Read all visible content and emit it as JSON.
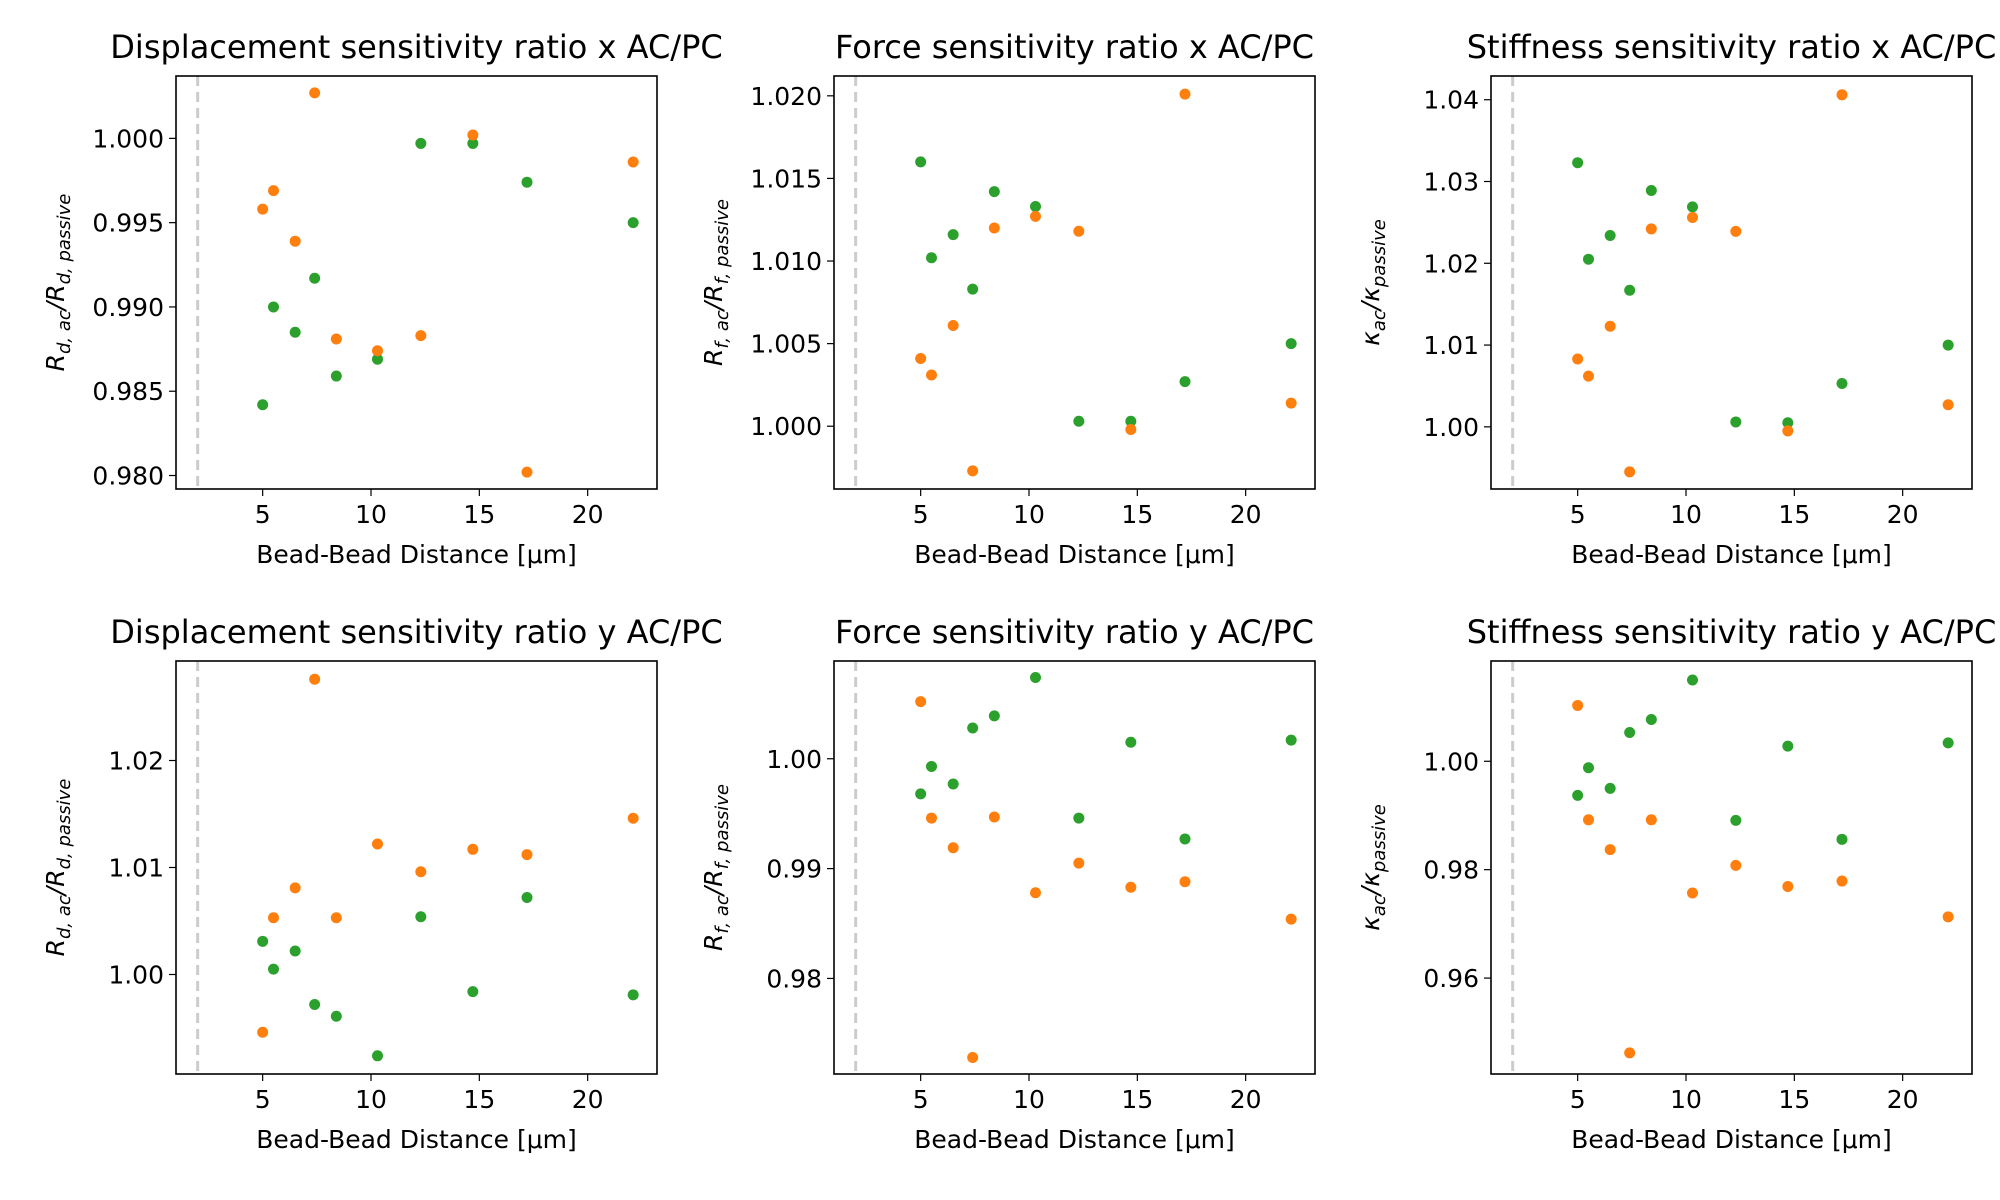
{
  "colors": {
    "series_a": "#2ca02c",
    "series_b": "#ff7f0e",
    "ref_line": "#cccccc"
  },
  "chart_data": [
    {
      "type": "scatter",
      "title": "Displacement sensitivity ratio x AC/PC",
      "xlabel": "Bead-Bead Distance [μm]",
      "ylabel": {
        "main": "R",
        "sub1": "d, ac",
        "mid": "/R",
        "sub2": "d, passive"
      },
      "xlim": [
        1,
        23.2
      ],
      "ylim": [
        0.9792,
        1.0037
      ],
      "xticks": [
        5,
        10,
        15,
        20
      ],
      "xtick_labels": [
        "5",
        "10",
        "15",
        "20"
      ],
      "yticks": [
        0.98,
        0.985,
        0.99,
        0.995,
        1.0
      ],
      "ytick_labels": [
        "0.980",
        "0.985",
        "0.990",
        "0.995",
        "1.000"
      ],
      "ref_x": 2,
      "series": [
        {
          "color": "#2ca02c",
          "x": [
            5.0,
            5.5,
            6.5,
            7.4,
            8.4,
            10.3,
            12.3,
            14.7,
            17.2,
            22.1
          ],
          "y": [
            0.9842,
            0.99,
            0.9885,
            0.9917,
            0.9859,
            0.9869,
            0.9997,
            0.9997,
            0.9974,
            0.995
          ]
        },
        {
          "color": "#ff7f0e",
          "x": [
            5.0,
            5.5,
            6.5,
            7.4,
            8.4,
            10.3,
            12.3,
            14.7,
            17.2,
            22.1
          ],
          "y": [
            0.9958,
            0.9969,
            0.9939,
            1.0027,
            0.9881,
            0.9874,
            0.9883,
            1.0002,
            0.9802,
            0.9986
          ]
        }
      ]
    },
    {
      "type": "scatter",
      "title": "Force sensitivity ratio x AC/PC",
      "xlabel": "Bead-Bead Distance [μm]",
      "ylabel": {
        "main": "R",
        "sub1": "f, ac",
        "mid": "/R",
        "sub2": "f, passive"
      },
      "xlim": [
        1,
        23.2
      ],
      "ylim": [
        0.9962,
        1.0212
      ],
      "xticks": [
        5,
        10,
        15,
        20
      ],
      "xtick_labels": [
        "5",
        "10",
        "15",
        "20"
      ],
      "yticks": [
        1.0,
        1.005,
        1.01,
        1.015,
        1.02
      ],
      "ytick_labels": [
        "1.000",
        "1.005",
        "1.010",
        "1.015",
        "1.020"
      ],
      "ref_x": 2,
      "series": [
        {
          "color": "#2ca02c",
          "x": [
            5.0,
            5.5,
            6.5,
            7.4,
            8.4,
            10.3,
            12.3,
            14.7,
            17.2,
            22.1
          ],
          "y": [
            1.016,
            1.0102,
            1.0116,
            1.0083,
            1.0142,
            1.0133,
            1.0003,
            1.0003,
            1.0027,
            1.005
          ]
        },
        {
          "color": "#ff7f0e",
          "x": [
            5.0,
            5.5,
            6.5,
            7.4,
            8.4,
            10.3,
            12.3,
            14.7,
            17.2,
            22.1
          ],
          "y": [
            1.0041,
            1.0031,
            1.0061,
            0.9973,
            1.012,
            1.0127,
            1.0118,
            0.9998,
            1.0201,
            1.0014
          ]
        }
      ]
    },
    {
      "type": "scatter",
      "title": "Stiffness sensitivity ratio x AC/PC",
      "xlabel": "Bead-Bead Distance [μm]",
      "ylabel": {
        "main": "κ",
        "sub1": "ac",
        "mid": "/κ",
        "sub2": "passive"
      },
      "xlim": [
        1,
        23.2
      ],
      "ylim": [
        0.9924,
        1.0429
      ],
      "xticks": [
        5,
        10,
        15,
        20
      ],
      "xtick_labels": [
        "5",
        "10",
        "15",
        "20"
      ],
      "yticks": [
        1.0,
        1.01,
        1.02,
        1.03,
        1.04
      ],
      "ytick_labels": [
        "1.00",
        "1.01",
        "1.02",
        "1.03",
        "1.04"
      ],
      "ref_x": 2,
      "series": [
        {
          "color": "#2ca02c",
          "x": [
            5.0,
            5.5,
            6.5,
            7.4,
            8.4,
            10.3,
            12.3,
            14.7,
            17.2,
            22.1
          ],
          "y": [
            1.0323,
            1.0205,
            1.0234,
            1.0167,
            1.0289,
            1.0269,
            1.0006,
            1.0005,
            1.0053,
            1.01
          ]
        },
        {
          "color": "#ff7f0e",
          "x": [
            5.0,
            5.5,
            6.5,
            7.4,
            8.4,
            10.3,
            12.3,
            14.7,
            17.2,
            22.1
          ],
          "y": [
            1.0083,
            1.0062,
            1.0123,
            0.9945,
            1.0242,
            1.0256,
            1.0239,
            0.9995,
            1.0406,
            1.0027
          ]
        }
      ]
    },
    {
      "type": "scatter",
      "title": "Displacement sensitivity ratio y AC/PC",
      "xlabel": "Bead-Bead Distance [μm]",
      "ylabel": {
        "main": "R",
        "sub1": "d, ac",
        "mid": "/R",
        "sub2": "d, passive"
      },
      "xlim": [
        1,
        23.2
      ],
      "ylim": [
        0.9907,
        1.0293
      ],
      "xticks": [
        5,
        10,
        15,
        20
      ],
      "xtick_labels": [
        "5",
        "10",
        "15",
        "20"
      ],
      "yticks": [
        1.0,
        1.01,
        1.02
      ],
      "ytick_labels": [
        "1.00",
        "1.01",
        "1.02"
      ],
      "ref_x": 2,
      "series": [
        {
          "color": "#2ca02c",
          "x": [
            5.0,
            5.5,
            6.5,
            7.4,
            8.4,
            10.3,
            12.3,
            14.7,
            17.2,
            22.1
          ],
          "y": [
            1.0031,
            1.0005,
            1.0022,
            0.9972,
            0.9961,
            0.9924,
            1.0054,
            0.9984,
            1.0072,
            0.9981
          ]
        },
        {
          "color": "#ff7f0e",
          "x": [
            5.0,
            5.5,
            6.5,
            7.4,
            8.4,
            10.3,
            12.3,
            14.7,
            17.2,
            22.1
          ],
          "y": [
            0.9946,
            1.0053,
            1.0081,
            1.0276,
            1.0053,
            1.0122,
            1.0096,
            1.0117,
            1.0112,
            1.0146
          ]
        }
      ]
    },
    {
      "type": "scatter",
      "title": "Force sensitivity ratio y AC/PC",
      "xlabel": "Bead-Bead Distance [μm]",
      "ylabel": {
        "main": "R",
        "sub1": "f, ac",
        "mid": "/R",
        "sub2": "f, passive"
      },
      "xlim": [
        1,
        23.2
      ],
      "ylim": [
        0.9713,
        1.0089
      ],
      "xticks": [
        5,
        10,
        15,
        20
      ],
      "xtick_labels": [
        "5",
        "10",
        "15",
        "20"
      ],
      "yticks": [
        0.98,
        0.99,
        1.0
      ],
      "ytick_labels": [
        "0.98",
        "0.99",
        "1.00"
      ],
      "ref_x": 2,
      "series": [
        {
          "color": "#2ca02c",
          "x": [
            5.0,
            5.5,
            6.5,
            7.4,
            8.4,
            10.3,
            12.3,
            14.7,
            17.2,
            22.1
          ],
          "y": [
            0.9968,
            0.9993,
            0.9977,
            1.0028,
            1.0039,
            1.0074,
            0.9946,
            1.0015,
            0.9927,
            1.0017
          ]
        },
        {
          "color": "#ff7f0e",
          "x": [
            5.0,
            5.5,
            6.5,
            7.4,
            8.4,
            10.3,
            12.3,
            14.7,
            17.2,
            22.1
          ],
          "y": [
            1.0052,
            0.9946,
            0.9919,
            0.9728,
            0.9947,
            0.9878,
            0.9905,
            0.9883,
            0.9888,
            0.9854
          ]
        }
      ]
    },
    {
      "type": "scatter",
      "title": "Stiffness sensitivity ratio y AC/PC",
      "xlabel": "Bead-Bead Distance [μm]",
      "ylabel": {
        "main": "κ",
        "sub1": "ac",
        "mid": "/κ",
        "sub2": "passive"
      },
      "xlim": [
        1,
        23.2
      ],
      "ylim": [
        0.9423,
        1.0185
      ],
      "xticks": [
        5,
        10,
        15,
        20
      ],
      "xtick_labels": [
        "5",
        "10",
        "15",
        "20"
      ],
      "yticks": [
        0.96,
        0.98,
        1.0
      ],
      "ytick_labels": [
        "0.96",
        "0.98",
        "1.00"
      ],
      "ref_x": 2,
      "series": [
        {
          "color": "#2ca02c",
          "x": [
            5.0,
            5.5,
            6.5,
            7.4,
            8.4,
            10.3,
            12.3,
            14.7,
            17.2,
            22.1
          ],
          "y": [
            0.9937,
            0.9988,
            0.995,
            1.0053,
            1.0077,
            1.015,
            0.9891,
            1.0028,
            0.9856,
            1.0034
          ]
        },
        {
          "color": "#ff7f0e",
          "x": [
            5.0,
            5.5,
            6.5,
            7.4,
            8.4,
            10.3,
            12.3,
            14.7,
            17.2,
            22.1
          ],
          "y": [
            1.0103,
            0.9892,
            0.9837,
            0.9462,
            0.9892,
            0.9757,
            0.9808,
            0.9769,
            0.9779,
            0.9713
          ]
        }
      ]
    }
  ]
}
